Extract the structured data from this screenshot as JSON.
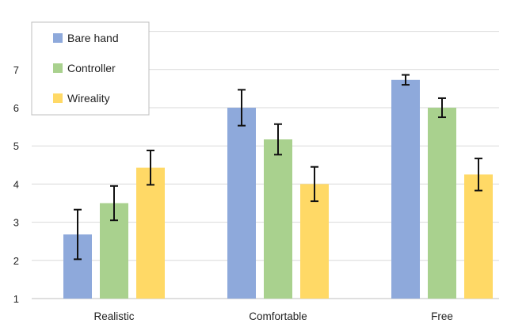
{
  "chart_data": {
    "type": "bar",
    "categories": [
      "Realistic",
      "Comfortable",
      "Free"
    ],
    "series": [
      {
        "name": "Bare hand",
        "color": "#8EA9DB",
        "values": [
          2.68,
          6.0,
          6.73
        ],
        "error": [
          0.65,
          0.47,
          0.13
        ]
      },
      {
        "name": "Controller",
        "color": "#A9D18E",
        "values": [
          3.5,
          5.17,
          6.0
        ],
        "error": [
          0.45,
          0.4,
          0.25
        ]
      },
      {
        "name": "Wireality",
        "color": "#FFD966",
        "values": [
          4.43,
          4.0,
          4.25
        ],
        "error": [
          0.45,
          0.45,
          0.42
        ]
      }
    ],
    "ylim": [
      1,
      8
    ],
    "yticks": [
      "1",
      "2",
      "3",
      "4",
      "5",
      "6",
      "7"
    ],
    "grid": true,
    "legend": "top-left",
    "title": "",
    "xlabel": "",
    "ylabel": ""
  }
}
